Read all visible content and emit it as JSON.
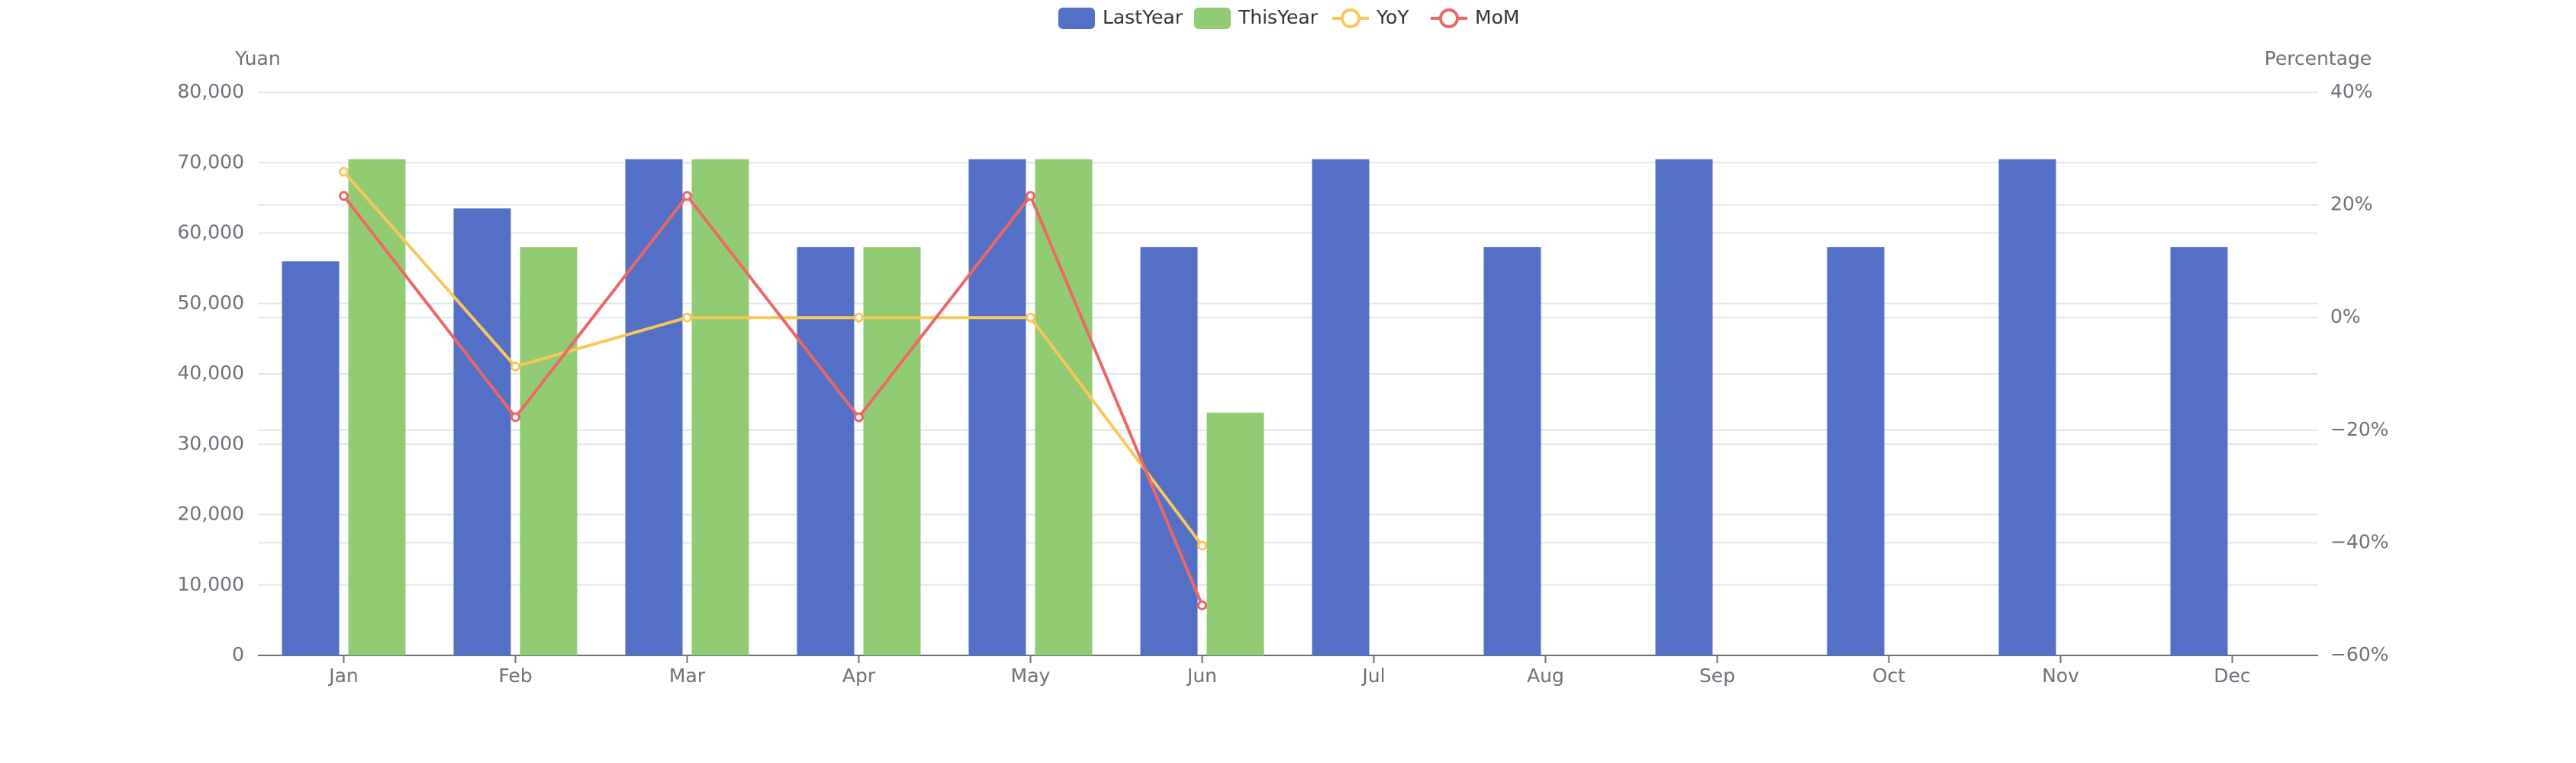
{
  "chart_data": {
    "type": "bar-line",
    "categories": [
      "Jan",
      "Feb",
      "Mar",
      "Apr",
      "May",
      "Jun",
      "Jul",
      "Aug",
      "Sep",
      "Oct",
      "Nov",
      "Dec"
    ],
    "y_label": "Yuan",
    "y2_label": "Percentage",
    "ylim": [
      0,
      80000
    ],
    "yticks": [
      0,
      {
        "value": 10000,
        "label": "10,000"
      },
      {
        "value": 20000,
        "label": "20,000"
      },
      {
        "value": 30000,
        "label": "30,000"
      },
      {
        "value": 40000,
        "label": "40,000"
      },
      {
        "value": 50000,
        "label": "50,000"
      },
      {
        "value": 60000,
        "label": "60,000"
      },
      {
        "value": 70000,
        "label": "70,000"
      },
      {
        "value": 80000,
        "label": "80,000"
      }
    ],
    "y2lim": [
      -60,
      40
    ],
    "y2ticks": [
      {
        "value": -60,
        "label": "−60%"
      },
      {
        "value": -40,
        "label": "−40%"
      },
      {
        "value": -20,
        "label": "−20%"
      },
      {
        "value": 0,
        "label": "0%"
      },
      {
        "value": 20,
        "label": "20%"
      },
      {
        "value": 40,
        "label": "40%"
      }
    ],
    "grid": true,
    "legend": "top",
    "series": [
      {
        "name": "LastYear",
        "type": "bar",
        "color": "#5470c6",
        "values": [
          56000,
          63500,
          70500,
          58000,
          70500,
          58000,
          70500,
          58000,
          70500,
          58000,
          70500,
          58000
        ]
      },
      {
        "name": "ThisYear",
        "type": "bar",
        "color": "#91cc75",
        "values": [
          70500,
          58000,
          70500,
          58000,
          70500,
          34500,
          null,
          null,
          null,
          null,
          null,
          null
        ]
      },
      {
        "name": "YoY",
        "type": "line",
        "axis": "y2",
        "color": "#fac858",
        "values": [
          25.9,
          -8.7,
          0,
          0,
          0,
          -40.5,
          null,
          null,
          null,
          null,
          null,
          null
        ]
      },
      {
        "name": "MoM",
        "type": "line",
        "axis": "y2",
        "color": "#ee6666",
        "values": [
          21.6,
          -17.7,
          21.6,
          -17.7,
          21.6,
          -51.1,
          null,
          null,
          null,
          null,
          null,
          null
        ]
      }
    ]
  }
}
